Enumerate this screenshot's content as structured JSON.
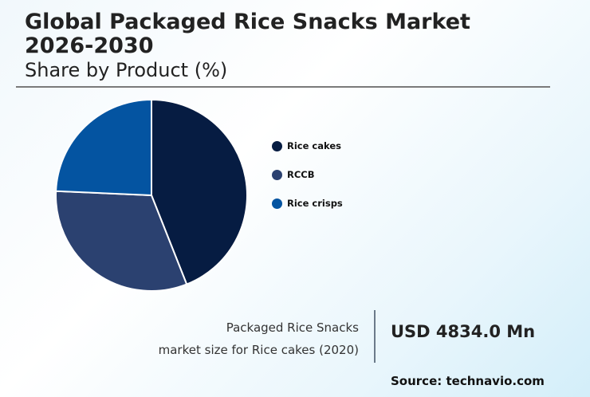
{
  "header": {
    "title_line1": "Global Packaged Rice Snacks Market",
    "title_line2": "2026-2030",
    "subtitle": "Share by Product (%)"
  },
  "legend": [
    {
      "label": "Rice cakes",
      "color": "#061c42"
    },
    {
      "label": "RCCB",
      "color": "#2b4170"
    },
    {
      "label": "Rice crisps",
      "color": "#0454a1"
    }
  ],
  "stat": {
    "label_line1": "Packaged Rice Snacks",
    "label_line2": "market size for Rice cakes (2020)",
    "value": "USD 4834.0 Mn"
  },
  "footer": {
    "source": "Source: technavio.com"
  },
  "chart_data": {
    "type": "pie",
    "title": "Global Packaged Rice Snacks Market 2026-2030",
    "subtitle": "Share by Product (%)",
    "categories": [
      "Rice cakes",
      "RCCB",
      "Rice crisps"
    ],
    "values": [
      44.0,
      31.7,
      24.3
    ],
    "colors": [
      "#061c42",
      "#2b4170",
      "#0454a1"
    ],
    "start_angle": "12 o'clock, clockwise",
    "legend_position": "right",
    "data_labels": false
  }
}
